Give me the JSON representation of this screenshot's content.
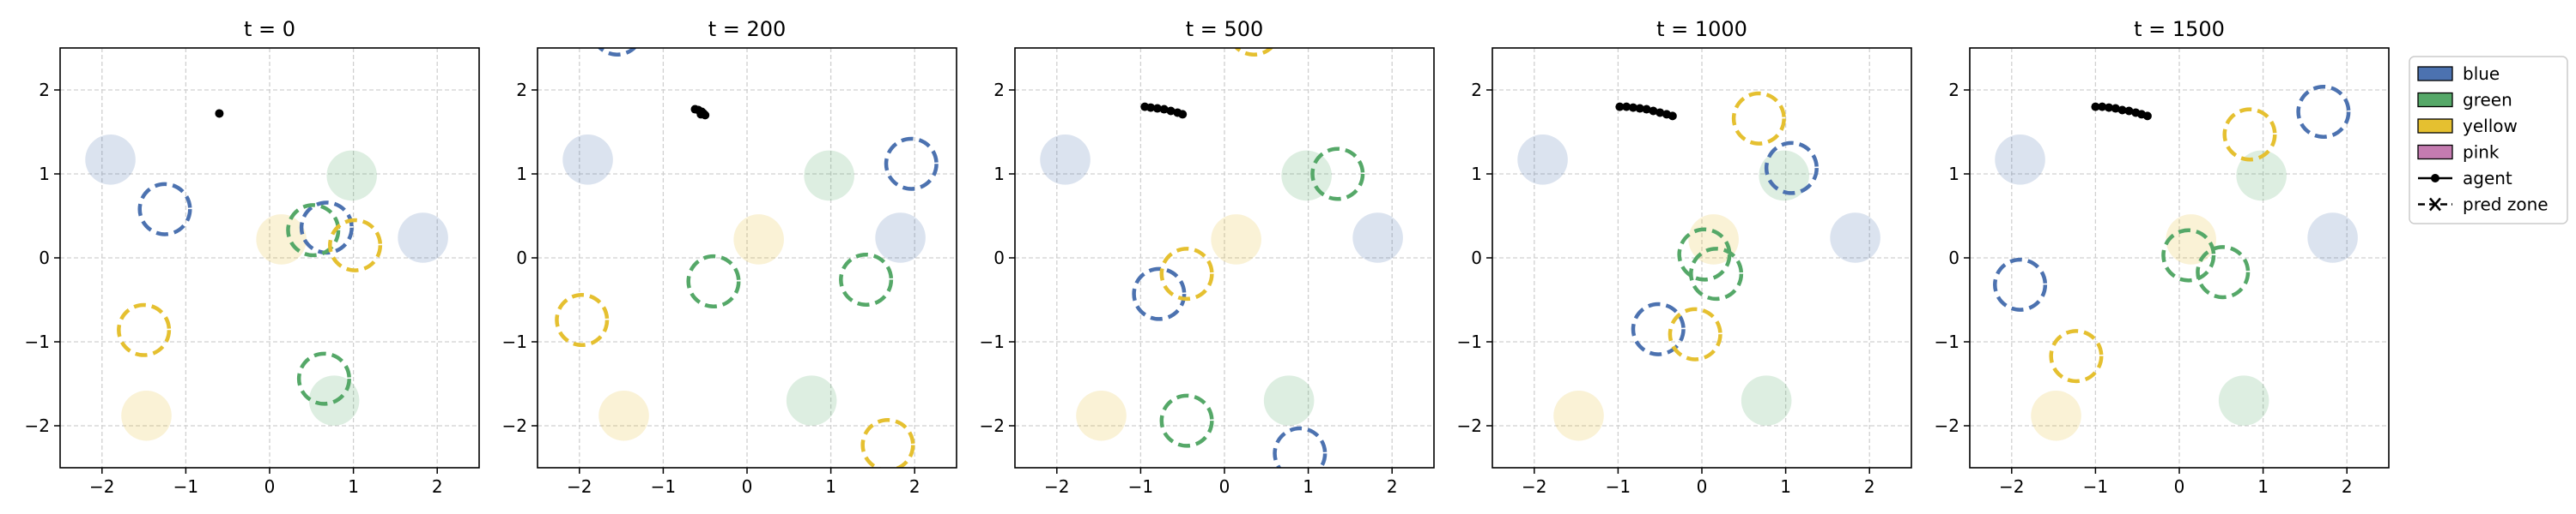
{
  "figure": {
    "legend": {
      "placement": "right",
      "items": [
        {
          "label": "blue",
          "kind": "patch",
          "color": "#4c72b0"
        },
        {
          "label": "green",
          "kind": "patch",
          "color": "#55a868"
        },
        {
          "label": "yellow",
          "kind": "patch",
          "color": "#e5c030"
        },
        {
          "label": "pink",
          "kind": "patch",
          "color": "#c47bb0"
        },
        {
          "label": "agent",
          "kind": "line-dot",
          "color": "#000000"
        },
        {
          "label": "pred zone",
          "kind": "line-x",
          "color": "#000000"
        }
      ]
    }
  },
  "chart_data": [
    {
      "type": "scatter",
      "title": "t = 0",
      "xlim": [
        -2.5,
        2.5
      ],
      "ylim": [
        -2.5,
        2.5
      ],
      "xticks": [
        -2,
        -1,
        0,
        1,
        2
      ],
      "yticks": [
        -2,
        -1,
        0,
        1,
        2
      ],
      "grid": true,
      "zone_radius": 0.3,
      "zones": [
        {
          "color": "blue",
          "x": -1.9,
          "y": 1.17
        },
        {
          "color": "blue",
          "x": 1.83,
          "y": 0.24
        },
        {
          "color": "green",
          "x": 0.98,
          "y": 0.98
        },
        {
          "color": "green",
          "x": 0.77,
          "y": -1.7
        },
        {
          "color": "yellow",
          "x": 0.14,
          "y": 0.22
        },
        {
          "color": "yellow",
          "x": -1.47,
          "y": -1.88
        }
      ],
      "pred_zones": [
        {
          "color": "blue",
          "x": -1.25,
          "y": 0.58
        },
        {
          "color": "blue",
          "x": 0.68,
          "y": 0.36
        },
        {
          "color": "green",
          "x": 0.52,
          "y": 0.33
        },
        {
          "color": "green",
          "x": 0.65,
          "y": -1.44
        },
        {
          "color": "yellow",
          "x": 1.02,
          "y": 0.15
        },
        {
          "color": "yellow",
          "x": -1.5,
          "y": -0.86
        }
      ],
      "agent": [
        [
          -0.6,
          1.72
        ]
      ]
    },
    {
      "type": "scatter",
      "title": "t = 200",
      "xlim": [
        -2.5,
        2.5
      ],
      "ylim": [
        -2.5,
        2.5
      ],
      "xticks": [
        -2,
        -1,
        0,
        1,
        2
      ],
      "yticks": [
        -2,
        -1,
        0,
        1,
        2
      ],
      "grid": true,
      "zone_radius": 0.3,
      "zones": [
        {
          "color": "blue",
          "x": -1.9,
          "y": 1.17
        },
        {
          "color": "blue",
          "x": 1.83,
          "y": 0.24
        },
        {
          "color": "green",
          "x": 0.98,
          "y": 0.98
        },
        {
          "color": "green",
          "x": 0.77,
          "y": -1.7
        },
        {
          "color": "yellow",
          "x": 0.14,
          "y": 0.22
        },
        {
          "color": "yellow",
          "x": -1.47,
          "y": -1.88
        }
      ],
      "pred_zones": [
        {
          "color": "blue",
          "x": -1.55,
          "y": 2.72
        },
        {
          "color": "blue",
          "x": 1.96,
          "y": 1.12
        },
        {
          "color": "green",
          "x": -0.4,
          "y": -0.28
        },
        {
          "color": "green",
          "x": 1.42,
          "y": -0.26
        },
        {
          "color": "yellow",
          "x": -1.97,
          "y": -0.74
        },
        {
          "color": "yellow",
          "x": 1.68,
          "y": -2.23
        }
      ],
      "agent": [
        [
          -0.62,
          1.77
        ],
        [
          -0.58,
          1.76
        ],
        [
          -0.54,
          1.74
        ],
        [
          -0.52,
          1.72
        ],
        [
          -0.5,
          1.7
        ],
        [
          -0.55,
          1.71
        ]
      ]
    },
    {
      "type": "scatter",
      "title": "t = 500",
      "xlim": [
        -2.5,
        2.5
      ],
      "ylim": [
        -2.5,
        2.5
      ],
      "xticks": [
        -2,
        -1,
        0,
        1,
        2
      ],
      "yticks": [
        -2,
        -1,
        0,
        1,
        2
      ],
      "grid": true,
      "zone_radius": 0.3,
      "zones": [
        {
          "color": "blue",
          "x": -1.9,
          "y": 1.17
        },
        {
          "color": "blue",
          "x": 1.83,
          "y": 0.24
        },
        {
          "color": "green",
          "x": 0.98,
          "y": 0.98
        },
        {
          "color": "green",
          "x": 0.77,
          "y": -1.7
        },
        {
          "color": "yellow",
          "x": 0.14,
          "y": 0.22
        },
        {
          "color": "yellow",
          "x": -1.47,
          "y": -1.88
        }
      ],
      "pred_zones": [
        {
          "color": "blue",
          "x": -0.78,
          "y": -0.43
        },
        {
          "color": "blue",
          "x": 0.9,
          "y": -2.33
        },
        {
          "color": "green",
          "x": 1.35,
          "y": 1.0
        },
        {
          "color": "green",
          "x": -0.45,
          "y": -1.94
        },
        {
          "color": "yellow",
          "x": 0.35,
          "y": 2.72
        },
        {
          "color": "yellow",
          "x": -0.45,
          "y": -0.19
        }
      ],
      "agent": [
        [
          -0.95,
          1.8
        ],
        [
          -0.88,
          1.79
        ],
        [
          -0.8,
          1.78
        ],
        [
          -0.72,
          1.77
        ],
        [
          -0.64,
          1.75
        ],
        [
          -0.56,
          1.73
        ],
        [
          -0.5,
          1.71
        ]
      ]
    },
    {
      "type": "scatter",
      "title": "t = 1000",
      "xlim": [
        -2.5,
        2.5
      ],
      "ylim": [
        -2.5,
        2.5
      ],
      "xticks": [
        -2,
        -1,
        0,
        1,
        2
      ],
      "yticks": [
        -2,
        -1,
        0,
        1,
        2
      ],
      "grid": true,
      "zone_radius": 0.3,
      "zones": [
        {
          "color": "blue",
          "x": -1.9,
          "y": 1.17
        },
        {
          "color": "blue",
          "x": 1.83,
          "y": 0.24
        },
        {
          "color": "green",
          "x": 0.98,
          "y": 0.98
        },
        {
          "color": "green",
          "x": 0.77,
          "y": -1.7
        },
        {
          "color": "yellow",
          "x": 0.14,
          "y": 0.22
        },
        {
          "color": "yellow",
          "x": -1.47,
          "y": -1.88
        }
      ],
      "pred_zones": [
        {
          "color": "blue",
          "x": 1.07,
          "y": 1.07
        },
        {
          "color": "blue",
          "x": -0.52,
          "y": -0.85
        },
        {
          "color": "green",
          "x": 0.03,
          "y": 0.04
        },
        {
          "color": "green",
          "x": 0.17,
          "y": -0.19
        },
        {
          "color": "yellow",
          "x": 0.68,
          "y": 1.66
        },
        {
          "color": "yellow",
          "x": -0.08,
          "y": -0.91
        }
      ],
      "agent": [
        [
          -0.98,
          1.8
        ],
        [
          -0.9,
          1.8
        ],
        [
          -0.82,
          1.79
        ],
        [
          -0.74,
          1.78
        ],
        [
          -0.66,
          1.77
        ],
        [
          -0.58,
          1.75
        ],
        [
          -0.5,
          1.73
        ],
        [
          -0.42,
          1.71
        ],
        [
          -0.35,
          1.69
        ]
      ]
    },
    {
      "type": "scatter",
      "title": "t = 1500",
      "xlim": [
        -2.5,
        2.5
      ],
      "ylim": [
        -2.5,
        2.5
      ],
      "xticks": [
        -2,
        -1,
        0,
        1,
        2
      ],
      "yticks": [
        -2,
        -1,
        0,
        1,
        2
      ],
      "grid": true,
      "zone_radius": 0.3,
      "zones": [
        {
          "color": "blue",
          "x": -1.9,
          "y": 1.17
        },
        {
          "color": "blue",
          "x": 1.83,
          "y": 0.24
        },
        {
          "color": "green",
          "x": 0.98,
          "y": 0.98
        },
        {
          "color": "green",
          "x": 0.77,
          "y": -1.7
        },
        {
          "color": "yellow",
          "x": 0.14,
          "y": 0.22
        },
        {
          "color": "yellow",
          "x": -1.47,
          "y": -1.88
        }
      ],
      "pred_zones": [
        {
          "color": "blue",
          "x": 1.72,
          "y": 1.74
        },
        {
          "color": "blue",
          "x": -1.9,
          "y": -0.32
        },
        {
          "color": "green",
          "x": 0.11,
          "y": 0.03
        },
        {
          "color": "green",
          "x": 0.52,
          "y": -0.17
        },
        {
          "color": "yellow",
          "x": 0.84,
          "y": 1.47
        },
        {
          "color": "yellow",
          "x": -1.23,
          "y": -1.17
        }
      ],
      "agent": [
        [
          -1.0,
          1.8
        ],
        [
          -0.92,
          1.8
        ],
        [
          -0.84,
          1.79
        ],
        [
          -0.76,
          1.78
        ],
        [
          -0.68,
          1.76
        ],
        [
          -0.6,
          1.75
        ],
        [
          -0.52,
          1.73
        ],
        [
          -0.45,
          1.71
        ],
        [
          -0.38,
          1.69
        ]
      ]
    }
  ]
}
